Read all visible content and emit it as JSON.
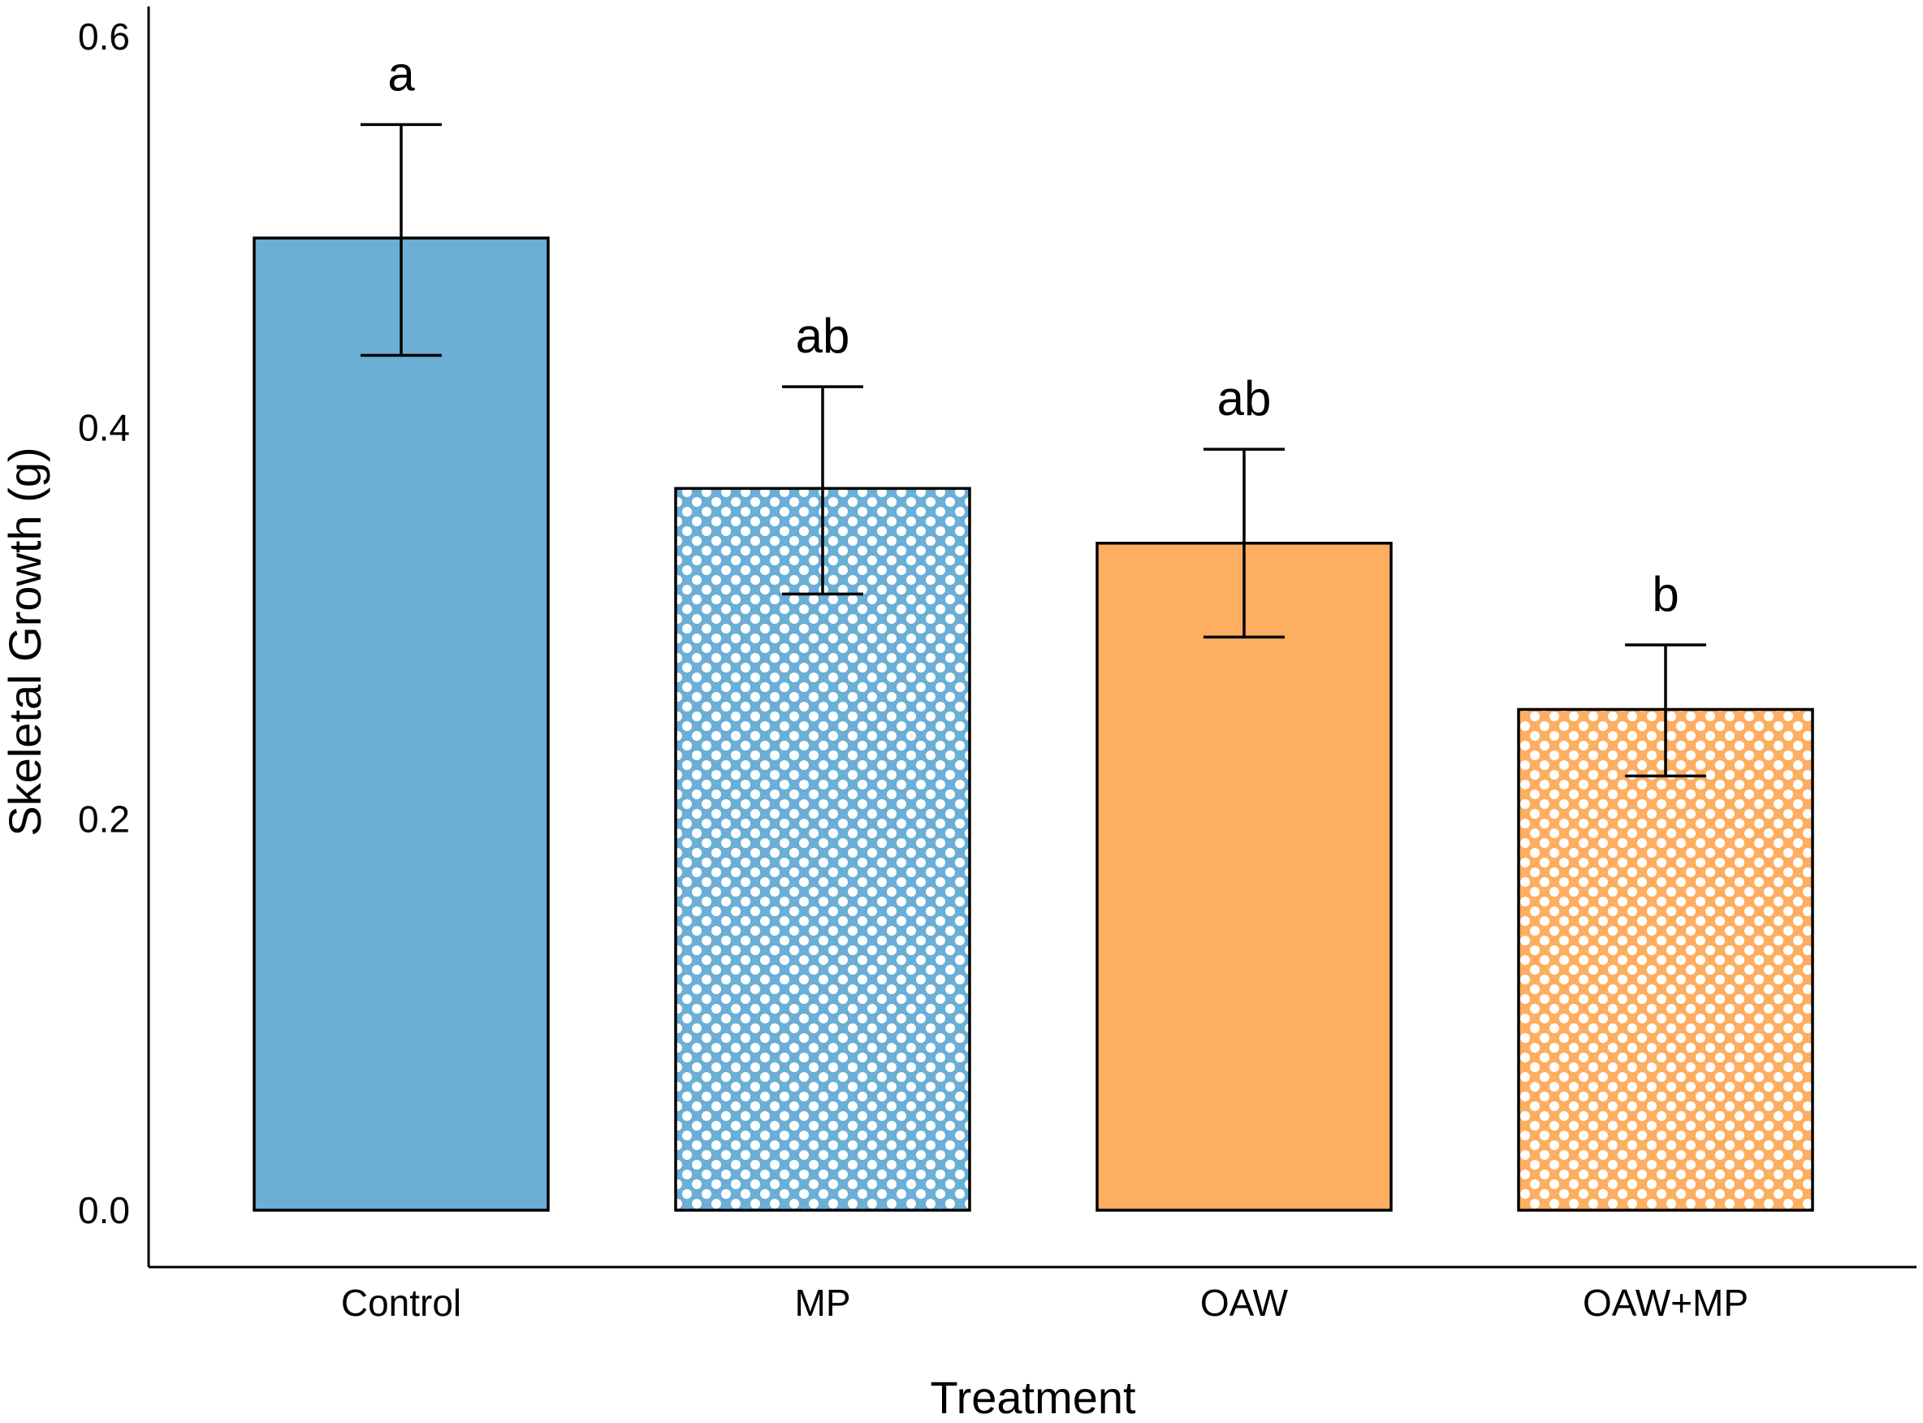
{
  "chart_data": {
    "type": "bar",
    "title": "",
    "xlabel": "Treatment",
    "ylabel": "Skeletal Growth (g)",
    "ylim": [
      0,
      0.6
    ],
    "yticks": [
      "0.0",
      "0.2",
      "0.4",
      "0.6"
    ],
    "ytick_values": [
      0.0,
      0.2,
      0.4,
      0.6
    ],
    "grid": false,
    "categories": [
      "Control",
      "MP",
      "OAW",
      "OAW+MP"
    ],
    "values": [
      0.497,
      0.369,
      0.341,
      0.256
    ],
    "error_upper": [
      0.555,
      0.421,
      0.389,
      0.289
    ],
    "error_lower": [
      0.437,
      0.315,
      0.293,
      0.222
    ],
    "significance": [
      "a",
      "ab",
      "ab",
      "b"
    ],
    "fills": [
      "#6baed6",
      "#6baed6",
      "#fdae61",
      "#fdae61"
    ],
    "patterned": [
      false,
      true,
      false,
      true
    ]
  }
}
